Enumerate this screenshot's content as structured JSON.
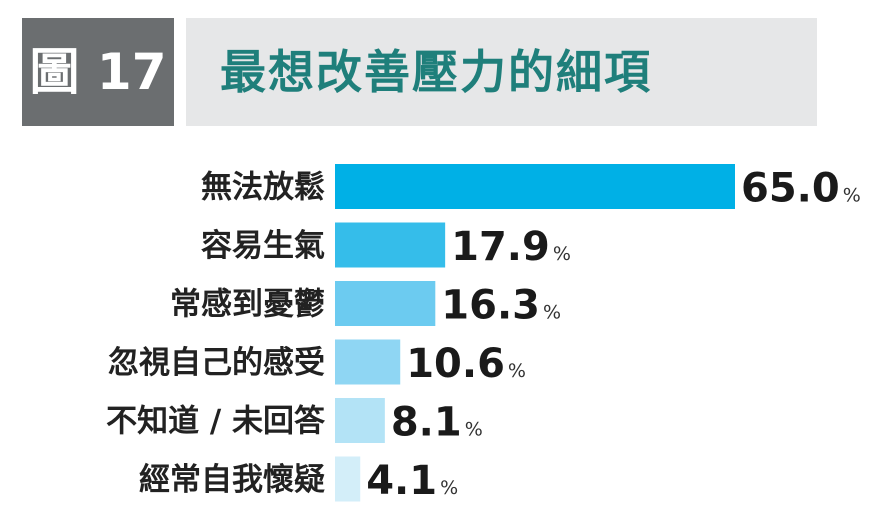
{
  "header": {
    "figure_label": "圖 17",
    "title": "最想改善壓力的細項"
  },
  "chart_data": {
    "type": "bar",
    "orientation": "horizontal",
    "title": "最想改善壓力的細項",
    "categories": [
      "無法放鬆",
      "容易生氣",
      "常感到憂鬱",
      "忽視自己的感受",
      "不知道 / 未回答",
      "經常自我懷疑"
    ],
    "values": [
      65.0,
      17.9,
      16.3,
      10.6,
      8.1,
      4.1
    ],
    "value_labels": [
      "65.0",
      "17.9",
      "16.3",
      "10.6",
      "8.1",
      "4.1"
    ],
    "unit": "%",
    "bar_colors": [
      "#00b0e6",
      "#35bdea",
      "#6ccbf0",
      "#8fd6f3",
      "#b3e3f6",
      "#d3eef9"
    ],
    "xlim": [
      0,
      65
    ],
    "grid": false,
    "legend": "none"
  }
}
